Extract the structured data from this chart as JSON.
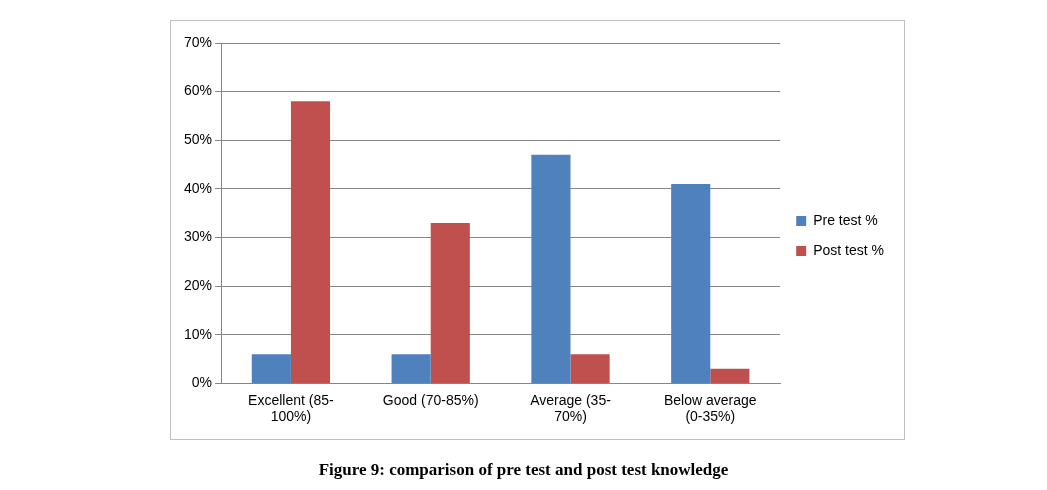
{
  "chart_data": {
    "type": "bar",
    "categories": [
      "Excellent (85-100%)",
      "Good (70-85%)",
      "Average (35-70%)",
      "Below average (0-35%)"
    ],
    "series": [
      {
        "name": "Pre test %",
        "color": "#4f81bd",
        "values": [
          6,
          6,
          47,
          41
        ]
      },
      {
        "name": "Post test %",
        "color": "#c0504d",
        "values": [
          58,
          33,
          6,
          3
        ]
      }
    ],
    "ylim": [
      0,
      70
    ],
    "yticks": [
      {
        "value": 0,
        "label": "0%"
      },
      {
        "value": 10,
        "label": "10%"
      },
      {
        "value": 20,
        "label": "20%"
      },
      {
        "value": 30,
        "label": "30%"
      },
      {
        "value": 40,
        "label": "40%"
      },
      {
        "value": 50,
        "label": "50%"
      },
      {
        "value": 60,
        "label": "60%"
      },
      {
        "value": 70,
        "label": "70%"
      }
    ],
    "grid": "y",
    "legend": "right",
    "annotations": [
      "Figure 9: comparison of pre test and post test knowledge"
    ]
  }
}
